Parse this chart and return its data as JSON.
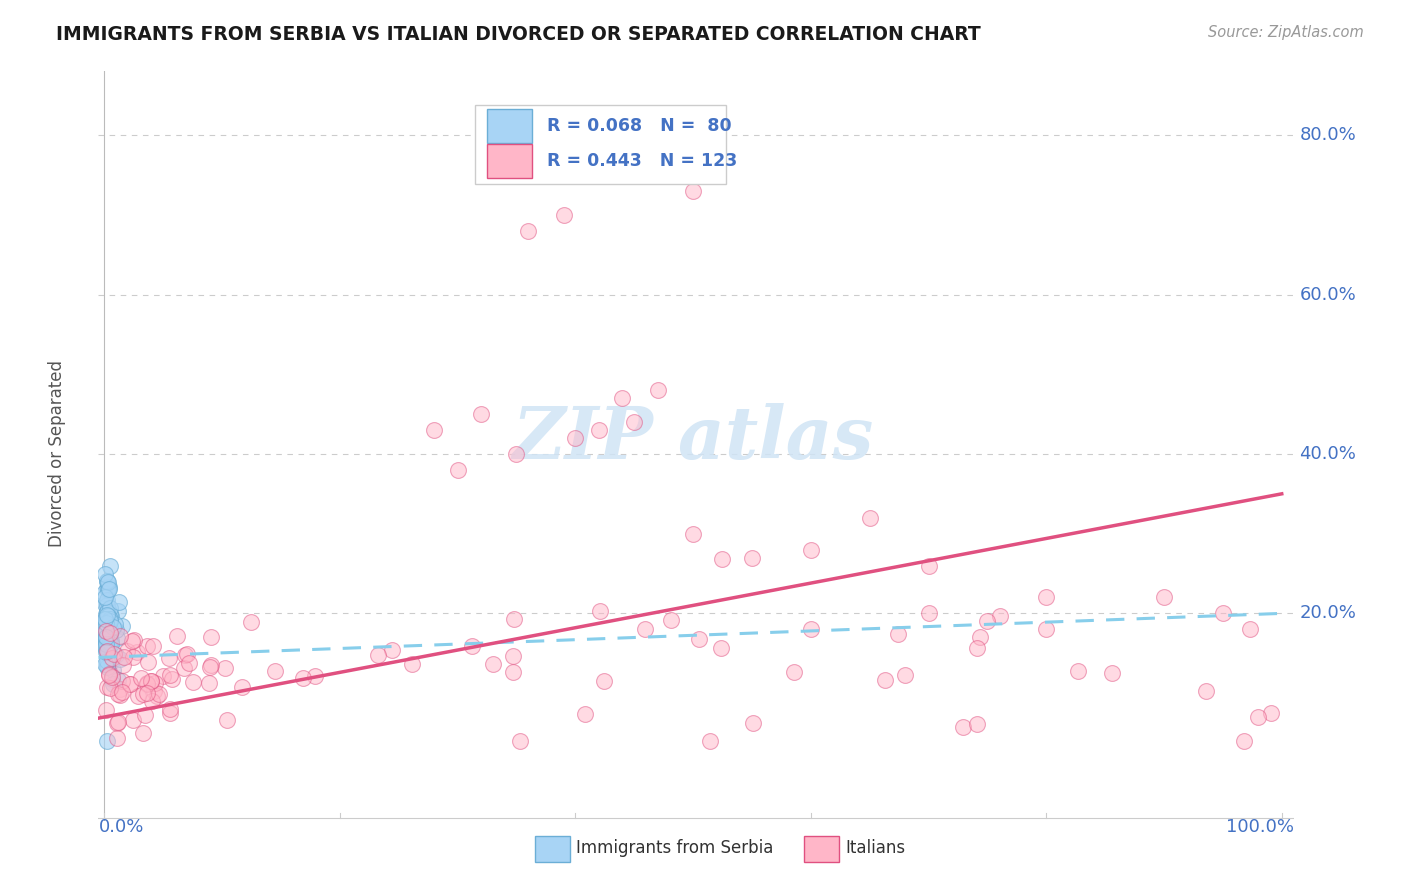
{
  "title": "IMMIGRANTS FROM SERBIA VS ITALIAN DIVORCED OR SEPARATED CORRELATION CHART",
  "source": "Source: ZipAtlas.com",
  "ylabel": "Divorced or Separated",
  "color_blue": "#a8d4f5",
  "color_blue_edge": "#6baed6",
  "color_blue_line": "#87CEEB",
  "color_pink": "#ffb6c8",
  "color_pink_edge": "#e05080",
  "color_pink_line": "#e05080",
  "color_text_blue": "#4472C4",
  "color_grid": "#cccccc",
  "background_color": "#ffffff",
  "title_color": "#1a1a1a",
  "source_color": "#999999",
  "ylabel_color": "#555555",
  "watermark_color": "#d0e4f5",
  "legend_box_color": "#ffffff",
  "legend_border_color": "#cccccc",
  "ytick_values": [
    0.2,
    0.4,
    0.6,
    0.8
  ],
  "ytick_labels": [
    "20.0%",
    "40.0%",
    "60.0%",
    "80.0%"
  ],
  "xlim": [
    -0.005,
    1.01
  ],
  "ylim": [
    -0.06,
    0.88
  ]
}
